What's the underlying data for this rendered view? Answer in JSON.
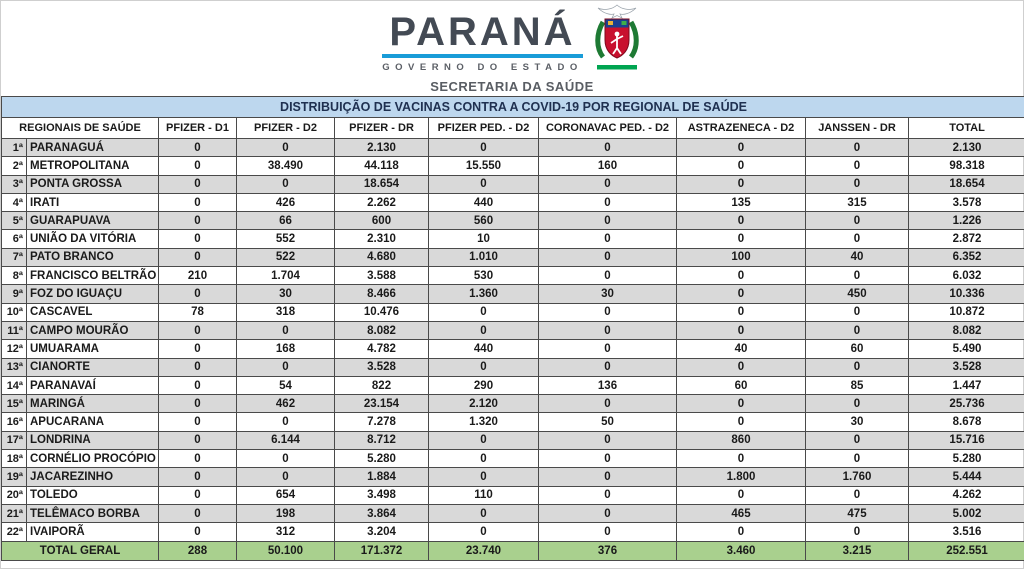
{
  "logo": {
    "state_name": "PARANÁ",
    "government_line": "GOVERNO DO ESTADO",
    "secretary_line": "SECRETARIA DA SAÚDE"
  },
  "table": {
    "title": "DISTRIBUIÇÃO DE VACINAS CONTRA A COVID-19 POR REGIONAL DE SAÚDE",
    "columns": [
      "REGIONAIS DE SAÚDE",
      "PFIZER - D1",
      "PFIZER - D2",
      "PFIZER - DR",
      "PFIZER PED. - D2",
      "CORONAVAC PED. - D2",
      "ASTRAZENECA - D2",
      "JANSSEN - DR",
      "TOTAL"
    ],
    "rows": [
      {
        "num": "1ª",
        "name": "PARANAGUÁ",
        "values": [
          "0",
          "0",
          "2.130",
          "0",
          "0",
          "0",
          "0",
          "2.130"
        ]
      },
      {
        "num": "2ª",
        "name": "METROPOLITANA",
        "values": [
          "0",
          "38.490",
          "44.118",
          "15.550",
          "160",
          "0",
          "0",
          "98.318"
        ]
      },
      {
        "num": "3ª",
        "name": "PONTA GROSSA",
        "values": [
          "0",
          "0",
          "18.654",
          "0",
          "0",
          "0",
          "0",
          "18.654"
        ]
      },
      {
        "num": "4ª",
        "name": "IRATI",
        "values": [
          "0",
          "426",
          "2.262",
          "440",
          "0",
          "135",
          "315",
          "3.578"
        ]
      },
      {
        "num": "5ª",
        "name": "GUARAPUAVA",
        "values": [
          "0",
          "66",
          "600",
          "560",
          "0",
          "0",
          "0",
          "1.226"
        ]
      },
      {
        "num": "6ª",
        "name": "UNIÃO DA VITÓRIA",
        "values": [
          "0",
          "552",
          "2.310",
          "10",
          "0",
          "0",
          "0",
          "2.872"
        ]
      },
      {
        "num": "7ª",
        "name": "PATO BRANCO",
        "values": [
          "0",
          "522",
          "4.680",
          "1.010",
          "0",
          "100",
          "40",
          "6.352"
        ]
      },
      {
        "num": "8ª",
        "name": "FRANCISCO BELTRÃO",
        "values": [
          "210",
          "1.704",
          "3.588",
          "530",
          "0",
          "0",
          "0",
          "6.032"
        ]
      },
      {
        "num": "9ª",
        "name": "FOZ DO IGUAÇU",
        "values": [
          "0",
          "30",
          "8.466",
          "1.360",
          "30",
          "0",
          "450",
          "10.336"
        ]
      },
      {
        "num": "10ª",
        "name": "CASCAVEL",
        "values": [
          "78",
          "318",
          "10.476",
          "0",
          "0",
          "0",
          "0",
          "10.872"
        ]
      },
      {
        "num": "11ª",
        "name": "CAMPO MOURÃO",
        "values": [
          "0",
          "0",
          "8.082",
          "0",
          "0",
          "0",
          "0",
          "8.082"
        ]
      },
      {
        "num": "12ª",
        "name": "UMUARAMA",
        "values": [
          "0",
          "168",
          "4.782",
          "440",
          "0",
          "40",
          "60",
          "5.490"
        ]
      },
      {
        "num": "13ª",
        "name": "CIANORTE",
        "values": [
          "0",
          "0",
          "3.528",
          "0",
          "0",
          "0",
          "0",
          "3.528"
        ]
      },
      {
        "num": "14ª",
        "name": "PARANAVAÍ",
        "values": [
          "0",
          "54",
          "822",
          "290",
          "136",
          "60",
          "85",
          "1.447"
        ]
      },
      {
        "num": "15ª",
        "name": "MARINGÁ",
        "values": [
          "0",
          "462",
          "23.154",
          "2.120",
          "0",
          "0",
          "0",
          "25.736"
        ]
      },
      {
        "num": "16ª",
        "name": "APUCARANA",
        "values": [
          "0",
          "0",
          "7.278",
          "1.320",
          "50",
          "0",
          "30",
          "8.678"
        ]
      },
      {
        "num": "17ª",
        "name": "LONDRINA",
        "values": [
          "0",
          "6.144",
          "8.712",
          "0",
          "0",
          "860",
          "0",
          "15.716"
        ]
      },
      {
        "num": "18ª",
        "name": "CORNÉLIO PROCÓPIO",
        "values": [
          "0",
          "0",
          "5.280",
          "0",
          "0",
          "0",
          "0",
          "5.280"
        ]
      },
      {
        "num": "19ª",
        "name": "JACAREZINHO",
        "values": [
          "0",
          "0",
          "1.884",
          "0",
          "0",
          "1.800",
          "1.760",
          "5.444"
        ]
      },
      {
        "num": "20ª",
        "name": "TOLEDO",
        "values": [
          "0",
          "654",
          "3.498",
          "110",
          "0",
          "0",
          "0",
          "4.262"
        ]
      },
      {
        "num": "21ª",
        "name": "TELÊMACO BORBA",
        "values": [
          "0",
          "198",
          "3.864",
          "0",
          "0",
          "465",
          "475",
          "5.002"
        ]
      },
      {
        "num": "22ª",
        "name": "IVAIPORÃ",
        "values": [
          "0",
          "312",
          "3.204",
          "0",
          "0",
          "0",
          "0",
          "3.516"
        ]
      }
    ],
    "total_row": {
      "label": "TOTAL GERAL",
      "values": [
        "288",
        "50.100",
        "171.372",
        "23.740",
        "376",
        "3.460",
        "3.215",
        "252.551"
      ]
    }
  },
  "colors": {
    "title_bar": "#BDD7EE",
    "row_stripe": "#D9D9D9",
    "total_row": "#A9D08E",
    "logo_blue": "#199CD8",
    "logo_green": "#00A551",
    "crest_red": "#C8102E",
    "crest_chief_blue": "#1B3F8F"
  }
}
